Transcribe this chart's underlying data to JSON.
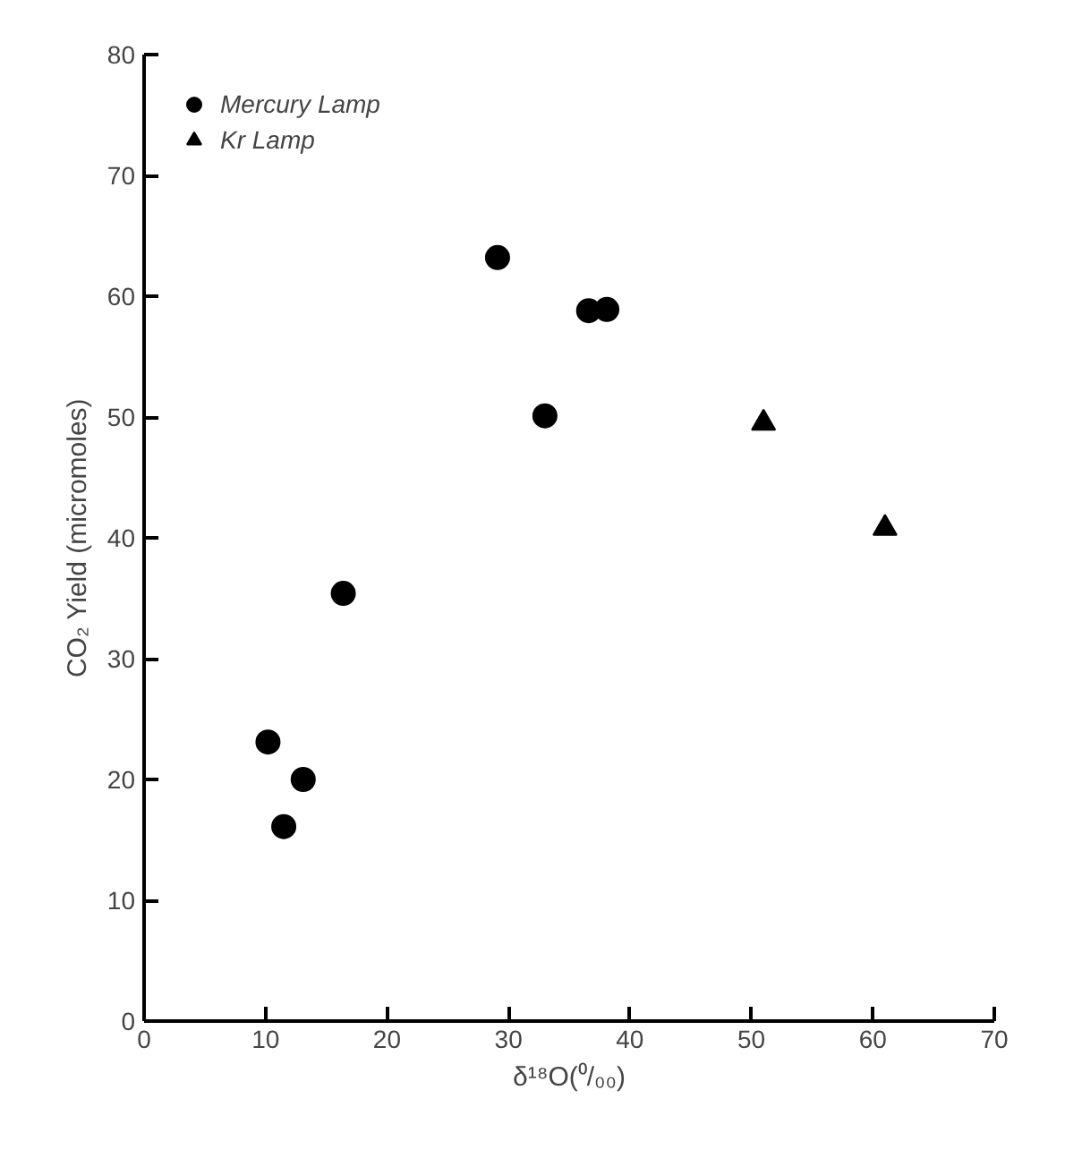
{
  "chart_data": {
    "type": "scatter",
    "xlabel": "δ¹⁸O(⁰/₀₀)",
    "ylabel": "CO₂ Yield (micromoles)",
    "xlim": [
      0,
      70
    ],
    "ylim": [
      0,
      80
    ],
    "xticks": [
      0,
      10,
      20,
      30,
      40,
      50,
      60,
      70
    ],
    "yticks": [
      0,
      10,
      20,
      30,
      40,
      50,
      60,
      70,
      80
    ],
    "grid": false,
    "legend": "top left",
    "series": [
      {
        "name": "Mercury Lamp",
        "color": "#000000",
        "marker": "circle",
        "x": [
          10.2,
          11.5,
          13.1,
          16.4,
          29.1,
          33.0,
          36.6,
          38.1
        ],
        "values": [
          23.1,
          16.1,
          20.0,
          35.4,
          63.2,
          50.1,
          58.8,
          58.9
        ]
      },
      {
        "name": "Kr Lamp",
        "color": "#000000",
        "marker": "triangle",
        "x": [
          51,
          61
        ],
        "values": [
          49.5,
          40.8
        ]
      }
    ]
  }
}
